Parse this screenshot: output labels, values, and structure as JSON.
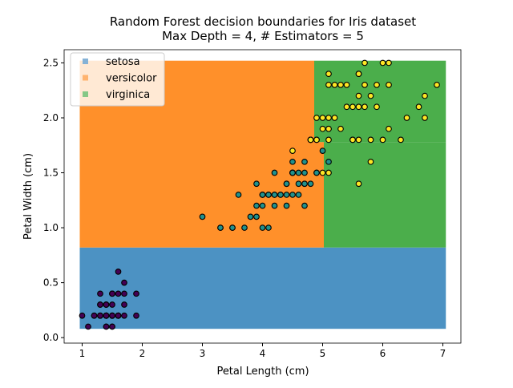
{
  "chart_data": {
    "type": "scatter",
    "title": "Random Forest decision boundaries for Iris dataset",
    "subtitle": "Max Depth = 4, # Estimators = 5",
    "xlabel": "Petal Length (cm)",
    "ylabel": "Petal Width (cm)",
    "xlim": [
      0.7,
      7.3
    ],
    "ylim": [
      -0.05,
      2.62
    ],
    "xticks": [
      1,
      2,
      3,
      4,
      5,
      6,
      7
    ],
    "xtick_labels": [
      "1",
      "2",
      "3",
      "4",
      "5",
      "6",
      "7"
    ],
    "yticks": [
      0,
      0.5,
      1,
      1.5,
      2,
      2.5
    ],
    "ytick_labels": [
      "0.0",
      "0.5",
      "1.0",
      "1.5",
      "2.0",
      "2.5"
    ],
    "grid": false,
    "legend": {
      "placement": "top-left",
      "entries": [
        "setosa",
        "versicolor",
        "virginica"
      ]
    },
    "region_colors": {
      "setosa": "#4c92c3",
      "versicolor": "#ff902a",
      "virginica": "#4bae4b"
    },
    "legend_colors": {
      "setosa": "#85b2d6",
      "versicolor": "#ffb36e",
      "virginica": "#86c886"
    },
    "regions": [
      {
        "class": "setosa",
        "x": [
          0.96,
          7.05
        ],
        "y": [
          0.08,
          0.82
        ]
      },
      {
        "class": "versicolor",
        "x": [
          0.96,
          4.86
        ],
        "y": [
          0.82,
          2.52
        ]
      },
      {
        "class": "versicolor",
        "x": [
          4.86,
          5.02
        ],
        "y": [
          0.82,
          1.78
        ]
      },
      {
        "class": "virginica",
        "x": [
          4.86,
          7.05
        ],
        "y": [
          1.78,
          2.52
        ]
      },
      {
        "class": "virginica",
        "x": [
          5.02,
          7.05
        ],
        "y": [
          0.82,
          1.78
        ]
      }
    ],
    "series": [
      {
        "class": "setosa",
        "color": "#440154",
        "points": [
          [
            1.4,
            0.2
          ],
          [
            1.4,
            0.2
          ],
          [
            1.3,
            0.2
          ],
          [
            1.5,
            0.2
          ],
          [
            1.4,
            0.2
          ],
          [
            1.7,
            0.4
          ],
          [
            1.4,
            0.3
          ],
          [
            1.5,
            0.2
          ],
          [
            1.4,
            0.2
          ],
          [
            1.5,
            0.1
          ],
          [
            1.5,
            0.2
          ],
          [
            1.6,
            0.2
          ],
          [
            1.4,
            0.1
          ],
          [
            1.1,
            0.1
          ],
          [
            1.2,
            0.2
          ],
          [
            1.5,
            0.4
          ],
          [
            1.3,
            0.4
          ],
          [
            1.4,
            0.3
          ],
          [
            1.7,
            0.3
          ],
          [
            1.5,
            0.3
          ],
          [
            1.7,
            0.2
          ],
          [
            1.5,
            0.4
          ],
          [
            1.0,
            0.2
          ],
          [
            1.7,
            0.5
          ],
          [
            1.9,
            0.2
          ],
          [
            1.6,
            0.2
          ],
          [
            1.6,
            0.4
          ],
          [
            1.5,
            0.2
          ],
          [
            1.4,
            0.2
          ],
          [
            1.6,
            0.2
          ],
          [
            1.6,
            0.2
          ],
          [
            1.5,
            0.4
          ],
          [
            1.5,
            0.1
          ],
          [
            1.4,
            0.2
          ],
          [
            1.5,
            0.2
          ],
          [
            1.2,
            0.2
          ],
          [
            1.3,
            0.2
          ],
          [
            1.4,
            0.1
          ],
          [
            1.3,
            0.2
          ],
          [
            1.5,
            0.2
          ],
          [
            1.3,
            0.3
          ],
          [
            1.3,
            0.3
          ],
          [
            1.3,
            0.2
          ],
          [
            1.6,
            0.6
          ],
          [
            1.9,
            0.4
          ],
          [
            1.4,
            0.3
          ],
          [
            1.6,
            0.2
          ],
          [
            1.4,
            0.2
          ],
          [
            1.5,
            0.2
          ],
          [
            1.4,
            0.2
          ]
        ]
      },
      {
        "class": "versicolor",
        "color": "#21918c",
        "points": [
          [
            4.7,
            1.4
          ],
          [
            4.5,
            1.5
          ],
          [
            4.9,
            1.5
          ],
          [
            4.0,
            1.3
          ],
          [
            4.6,
            1.5
          ],
          [
            4.5,
            1.3
          ],
          [
            4.7,
            1.6
          ],
          [
            3.3,
            1.0
          ],
          [
            4.6,
            1.3
          ],
          [
            3.9,
            1.4
          ],
          [
            3.5,
            1.0
          ],
          [
            4.2,
            1.5
          ],
          [
            4.0,
            1.0
          ],
          [
            4.7,
            1.4
          ],
          [
            3.6,
            1.3
          ],
          [
            4.4,
            1.4
          ],
          [
            4.5,
            1.5
          ],
          [
            4.1,
            1.0
          ],
          [
            4.5,
            1.5
          ],
          [
            3.9,
            1.1
          ],
          [
            4.8,
            1.8
          ],
          [
            4.0,
            1.3
          ],
          [
            4.9,
            1.5
          ],
          [
            4.7,
            1.2
          ],
          [
            4.3,
            1.3
          ],
          [
            4.4,
            1.4
          ],
          [
            4.8,
            1.4
          ],
          [
            5.0,
            1.7
          ],
          [
            4.5,
            1.5
          ],
          [
            3.5,
            1.0
          ],
          [
            3.8,
            1.1
          ],
          [
            3.7,
            1.0
          ],
          [
            3.9,
            1.2
          ],
          [
            5.1,
            1.6
          ],
          [
            4.5,
            1.5
          ],
          [
            4.5,
            1.6
          ],
          [
            4.7,
            1.5
          ],
          [
            4.4,
            1.3
          ],
          [
            4.1,
            1.3
          ],
          [
            4.0,
            1.3
          ],
          [
            4.4,
            1.2
          ],
          [
            4.6,
            1.4
          ],
          [
            4.0,
            1.2
          ],
          [
            3.3,
            1.0
          ],
          [
            4.2,
            1.3
          ],
          [
            4.2,
            1.2
          ],
          [
            4.2,
            1.3
          ],
          [
            4.3,
            1.3
          ],
          [
            3.0,
            1.1
          ],
          [
            4.1,
            1.3
          ]
        ]
      },
      {
        "class": "virginica",
        "color": "#fde725",
        "points": [
          [
            6.0,
            2.5
          ],
          [
            5.1,
            1.9
          ],
          [
            5.9,
            2.1
          ],
          [
            5.6,
            1.8
          ],
          [
            5.8,
            2.2
          ],
          [
            6.6,
            2.1
          ],
          [
            4.5,
            1.7
          ],
          [
            6.3,
            1.8
          ],
          [
            5.8,
            1.8
          ],
          [
            6.1,
            2.5
          ],
          [
            5.1,
            2.0
          ],
          [
            5.3,
            1.9
          ],
          [
            5.5,
            2.1
          ],
          [
            5.0,
            2.0
          ],
          [
            5.1,
            2.4
          ],
          [
            5.3,
            2.3
          ],
          [
            5.5,
            1.8
          ],
          [
            6.7,
            2.2
          ],
          [
            6.9,
            2.3
          ],
          [
            5.0,
            1.5
          ],
          [
            5.7,
            2.3
          ],
          [
            4.9,
            2.0
          ],
          [
            6.7,
            2.0
          ],
          [
            4.9,
            1.8
          ],
          [
            5.7,
            2.1
          ],
          [
            6.0,
            1.8
          ],
          [
            4.8,
            1.8
          ],
          [
            4.9,
            1.8
          ],
          [
            5.6,
            2.1
          ],
          [
            5.8,
            1.6
          ],
          [
            6.1,
            1.9
          ],
          [
            6.4,
            2.0
          ],
          [
            5.6,
            2.2
          ],
          [
            5.1,
            1.5
          ],
          [
            5.6,
            1.4
          ],
          [
            6.1,
            2.3
          ],
          [
            5.6,
            2.4
          ],
          [
            5.5,
            1.8
          ],
          [
            4.8,
            1.8
          ],
          [
            5.4,
            2.1
          ],
          [
            5.6,
            2.4
          ],
          [
            5.1,
            2.3
          ],
          [
            5.1,
            1.9
          ],
          [
            5.9,
            2.3
          ],
          [
            5.7,
            2.5
          ],
          [
            5.2,
            2.3
          ],
          [
            5.0,
            1.9
          ],
          [
            5.2,
            2.0
          ],
          [
            5.4,
            2.3
          ],
          [
            5.1,
            1.8
          ]
        ]
      }
    ]
  }
}
